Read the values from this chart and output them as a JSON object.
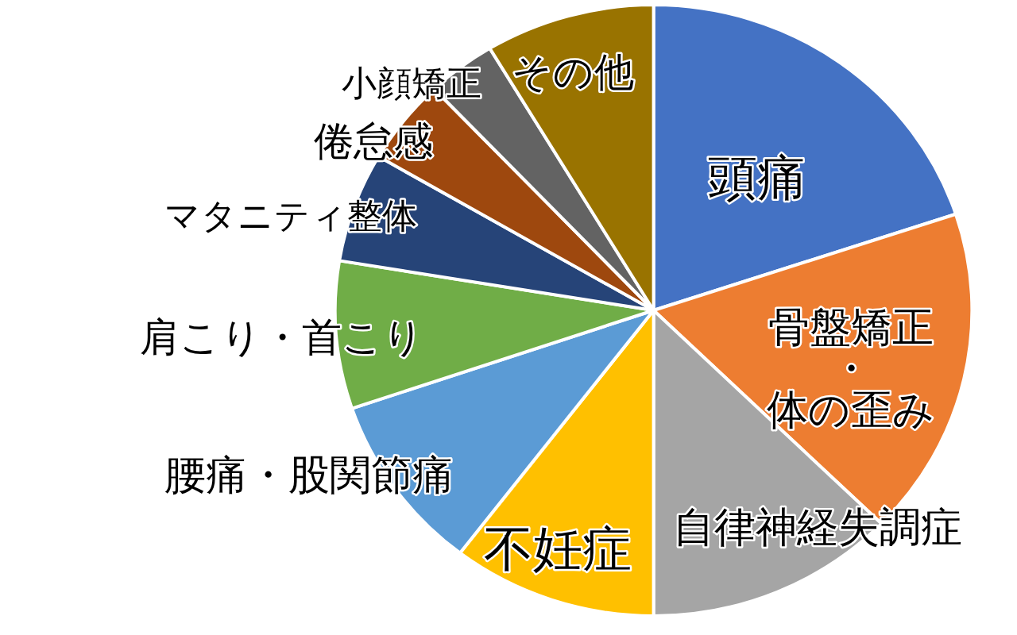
{
  "chart_data": {
    "type": "pie",
    "categories": [
      "頭痛",
      "骨盤矯正・体の歪み",
      "自律神経失調症",
      "不妊症",
      "腰痛・股関節痛",
      "肩こり・首こり",
      "マタニティ整体",
      "倦怠感",
      "小顔矯正",
      "その他"
    ],
    "values": [
      19.9,
      17.4,
      12.7,
      10.4,
      9.4,
      7.8,
      5.8,
      4.5,
      3.5,
      8.6
    ],
    "colors": [
      "#4472c4",
      "#ed7d31",
      "#a5a5a5",
      "#ffc000",
      "#5b9bd5",
      "#70ad47",
      "#264478",
      "#9e480e",
      "#636363",
      "#997300"
    ]
  }
}
